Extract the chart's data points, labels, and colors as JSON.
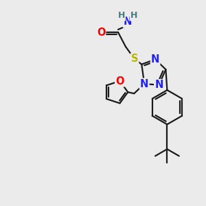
{
  "bg_color": "#ebebeb",
  "bond_color": "#1a1a1a",
  "N_color": "#2020ff",
  "O_color": "#ff0000",
  "S_color": "#b8b800",
  "H_color": "#408080",
  "line_width": 1.6,
  "font_size": 10.5,
  "figsize": [
    3.0,
    3.0
  ],
  "dpi": 100,
  "xlim": [
    0,
    300
  ],
  "ylim": [
    0,
    300
  ]
}
